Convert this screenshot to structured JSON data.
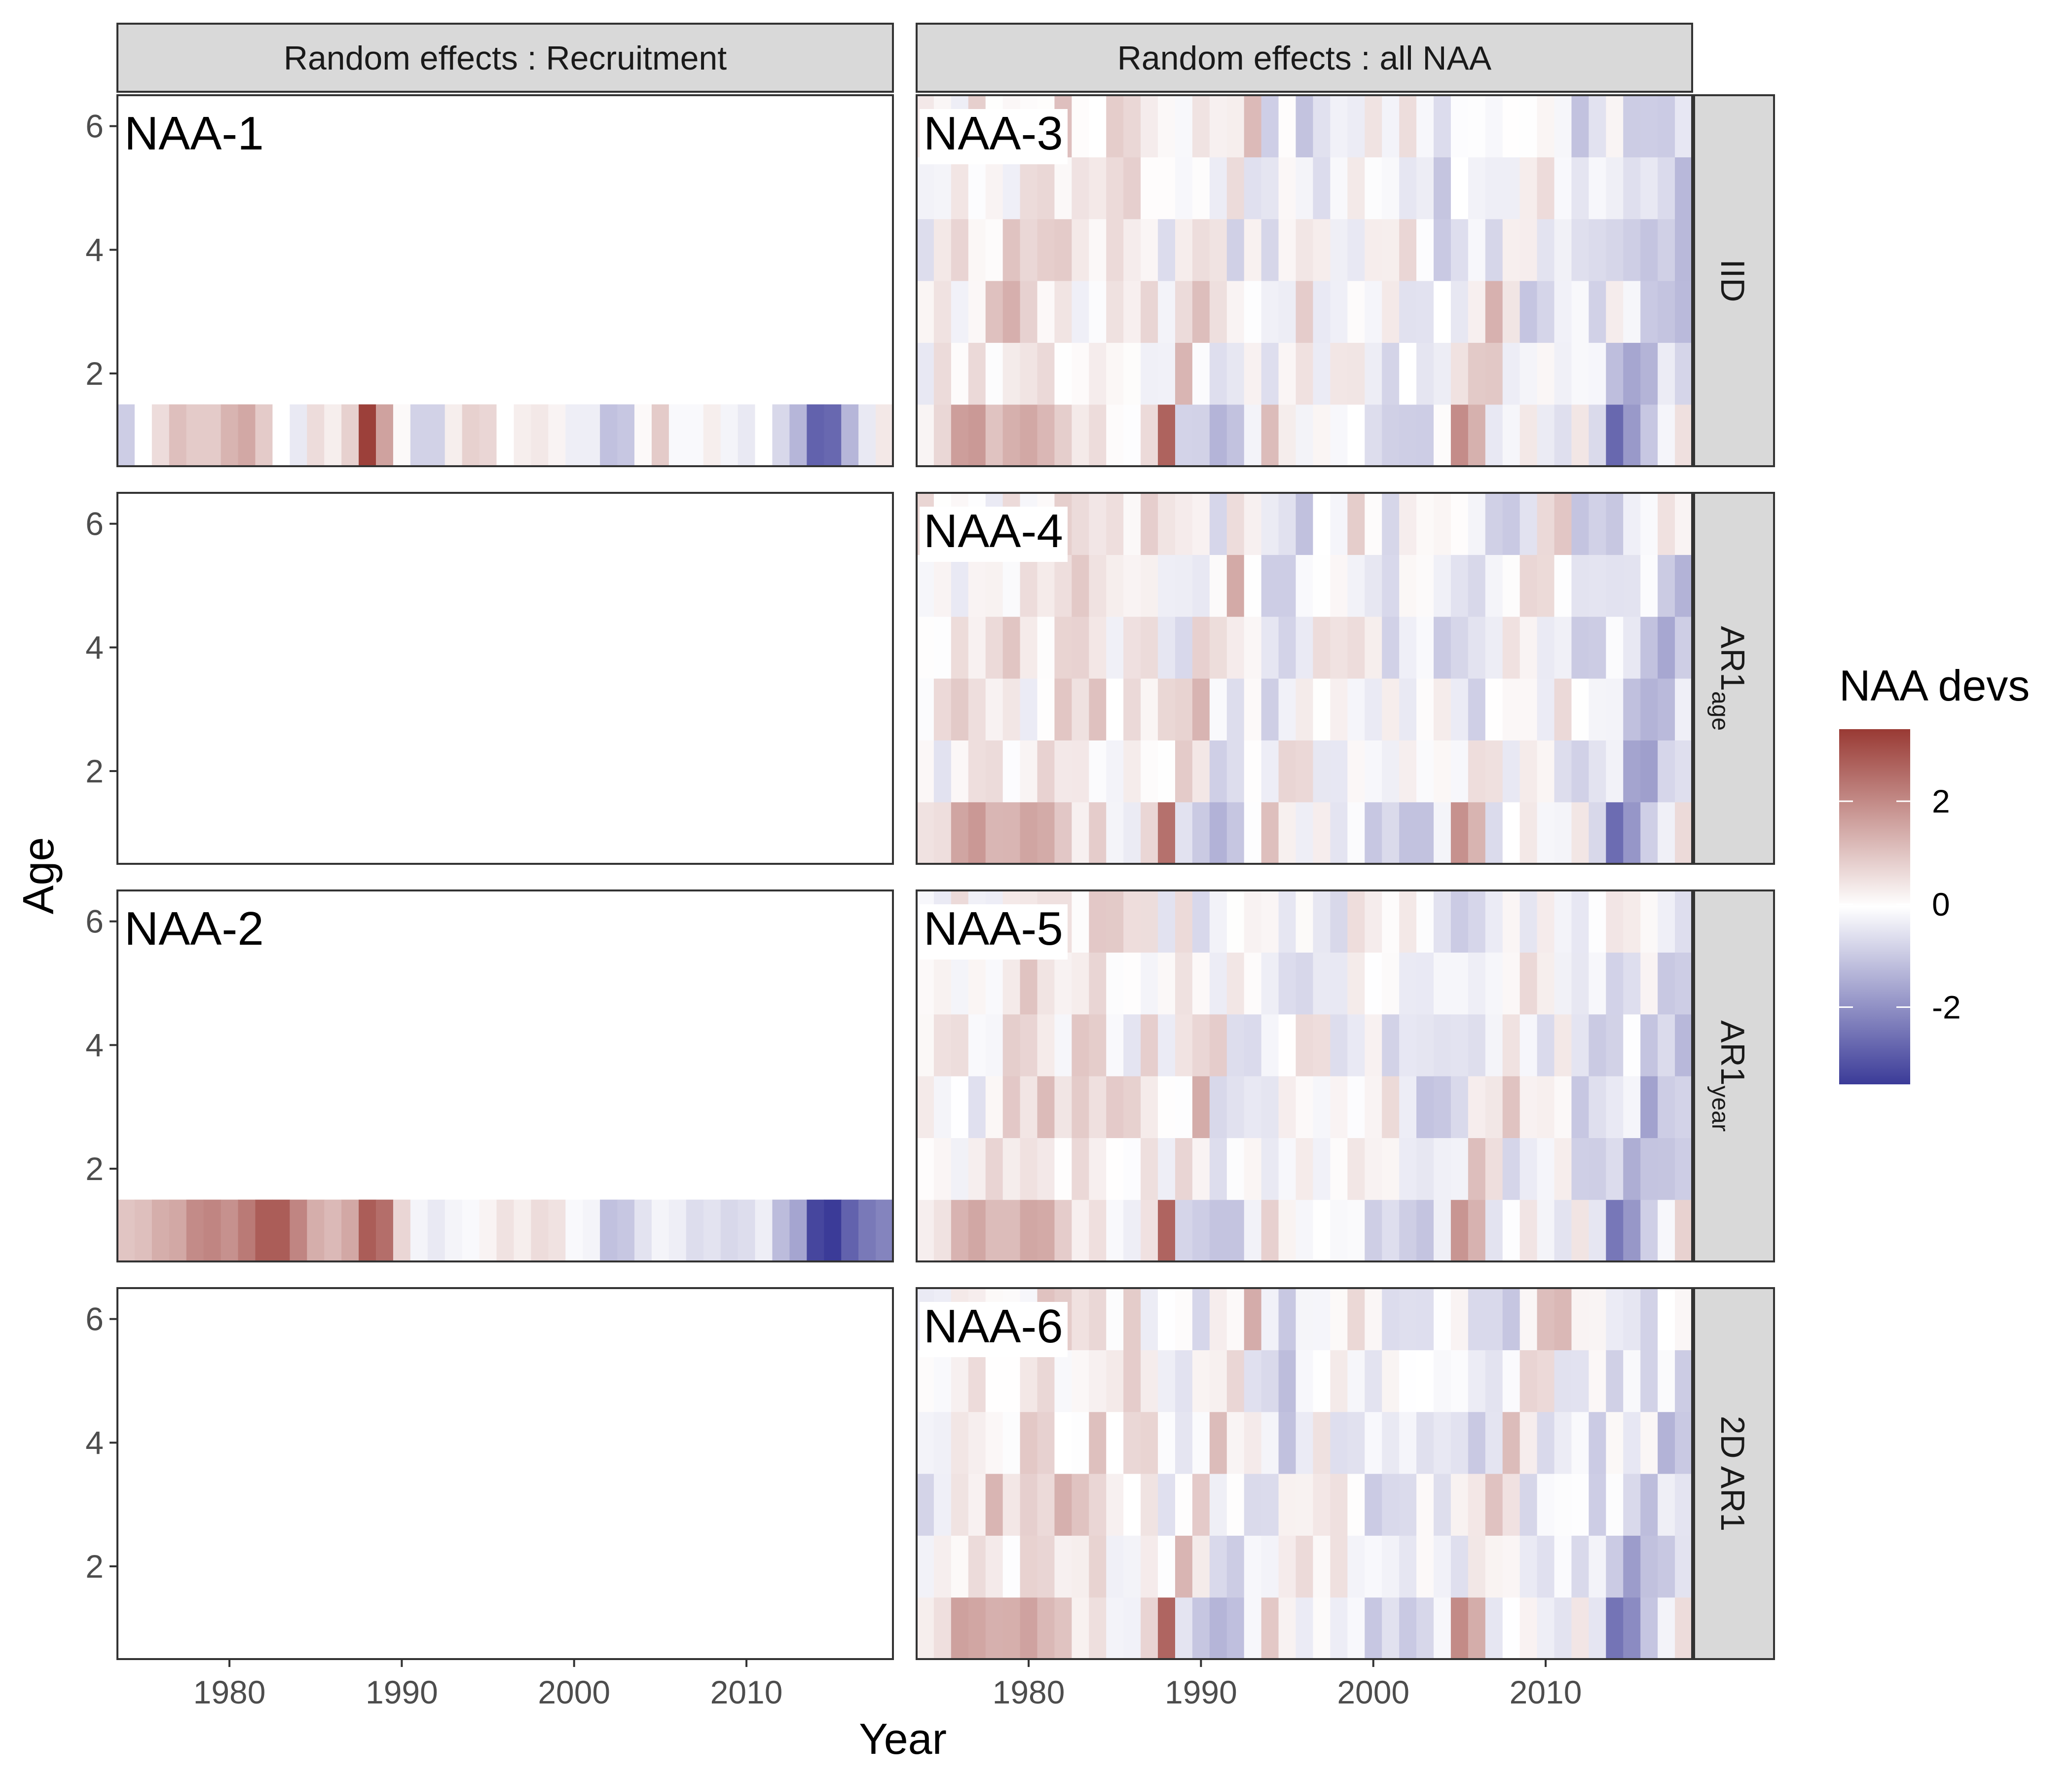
{
  "chart_data": {
    "type": "heatmap",
    "title": "",
    "xlabel": "Year",
    "ylabel": "Age",
    "x_ticks": [
      "1980",
      "1990",
      "2000",
      "2010"
    ],
    "y_ticks": [
      "2",
      "4",
      "6"
    ],
    "xlim": [
      1973.5,
      2018.5
    ],
    "ylim": [
      0.5,
      6.5
    ],
    "column_facets": [
      "Random  effects :  Recruitment",
      "Random  effects :  all  NAA"
    ],
    "row_facets": [
      {
        "main": "IID",
        "sub": ""
      },
      {
        "main": "AR1",
        "sub": "age"
      },
      {
        "main": "AR1",
        "sub": "year"
      },
      {
        "main": "2D  AR1",
        "sub": ""
      }
    ],
    "legend": {
      "title": "NAA devs",
      "labels": [
        "2",
        "0",
        "-2"
      ],
      "limits": [
        -3.5,
        3.4
      ],
      "low_color": "#3b3b98",
      "mid_color": "#ffffff",
      "high_color": "#993a34",
      "placement": "right"
    },
    "years": [
      1974,
      1975,
      1976,
      1977,
      1978,
      1979,
      1980,
      1981,
      1982,
      1983,
      1984,
      1985,
      1986,
      1987,
      1988,
      1989,
      1990,
      1991,
      1992,
      1993,
      1994,
      1995,
      1996,
      1997,
      1998,
      1999,
      2000,
      2001,
      2002,
      2003,
      2004,
      2005,
      2006,
      2007,
      2008,
      2009,
      2010,
      2011,
      2012,
      2013,
      2014,
      2015,
      2016,
      2017,
      2018
    ],
    "ages": [
      1,
      2,
      3,
      4,
      5,
      6
    ],
    "panels": [
      {
        "label": "NAA-1",
        "col": 0,
        "row": 0,
        "ages_present": [
          1
        ],
        "rec": [
          -0.9,
          0.0,
          0.6,
          1.1,
          0.9,
          0.9,
          1.3,
          1.5,
          0.9,
          0.0,
          -0.4,
          0.6,
          0.3,
          0.8,
          3.3,
          1.6,
          0.1,
          -0.8,
          -0.8,
          0.3,
          0.8,
          0.7,
          0.0,
          0.3,
          0.4,
          0.2,
          -0.3,
          -0.3,
          -1.1,
          -1.0,
          0.1,
          0.9,
          -0.1,
          -0.1,
          0.3,
          -0.2,
          -0.4,
          0.0,
          -0.7,
          -1.3,
          -2.8,
          -2.7,
          -1.3,
          -0.4,
          0.4
        ]
      },
      {
        "label": "NAA-2",
        "col": 0,
        "row": 2,
        "ages_present": [
          1
        ],
        "rec": [
          1.0,
          1.1,
          1.4,
          1.5,
          2.0,
          2.1,
          1.9,
          2.3,
          2.8,
          2.8,
          2.1,
          1.4,
          1.2,
          1.5,
          2.8,
          2.5,
          0.7,
          -0.2,
          -0.4,
          -0.2,
          -0.1,
          0.2,
          0.5,
          0.3,
          0.6,
          0.5,
          -0.1,
          -0.2,
          -1.1,
          -1.0,
          -0.5,
          -0.2,
          -0.3,
          -0.6,
          -0.5,
          -0.7,
          -0.6,
          -0.3,
          -1.2,
          -1.6,
          -3.3,
          -3.5,
          -2.8,
          -2.4,
          -2.2
        ]
      },
      {
        "label": "NAA-3",
        "col": 1,
        "row": 0,
        "ages_present": [
          1,
          2,
          3,
          4,
          5,
          6
        ],
        "pattern": 0
      },
      {
        "label": "NAA-4",
        "col": 1,
        "row": 1,
        "ages_present": [
          1,
          2,
          3,
          4,
          5,
          6
        ],
        "pattern": 1
      },
      {
        "label": "NAA-5",
        "col": 1,
        "row": 2,
        "ages_present": [
          1,
          2,
          3,
          4,
          5,
          6
        ],
        "pattern": 2
      },
      {
        "label": "NAA-6",
        "col": 1,
        "row": 3,
        "ages_present": [
          1,
          2,
          3,
          4,
          5,
          6
        ],
        "pattern": 3
      }
    ],
    "naa_age1_base": [
      0.3,
      0.6,
      1.5,
      1.6,
      1.2,
      1.2,
      1.7,
      1.4,
      0.9,
      0.4,
      0.7,
      -0.1,
      -0.2,
      0.6,
      2.6,
      -0.6,
      -1.0,
      -1.2,
      -1.1,
      -0.2,
      1.0,
      0.3,
      -0.3,
      0.2,
      -0.3,
      0.0,
      -0.8,
      -0.7,
      -0.9,
      -0.9,
      -0.1,
      2.0,
      1.4,
      -0.6,
      -0.2,
      0.3,
      -0.2,
      -0.4,
      0.5,
      -0.6,
      -2.6,
      -1.9,
      -0.9,
      -0.1,
      0.7
    ]
  }
}
